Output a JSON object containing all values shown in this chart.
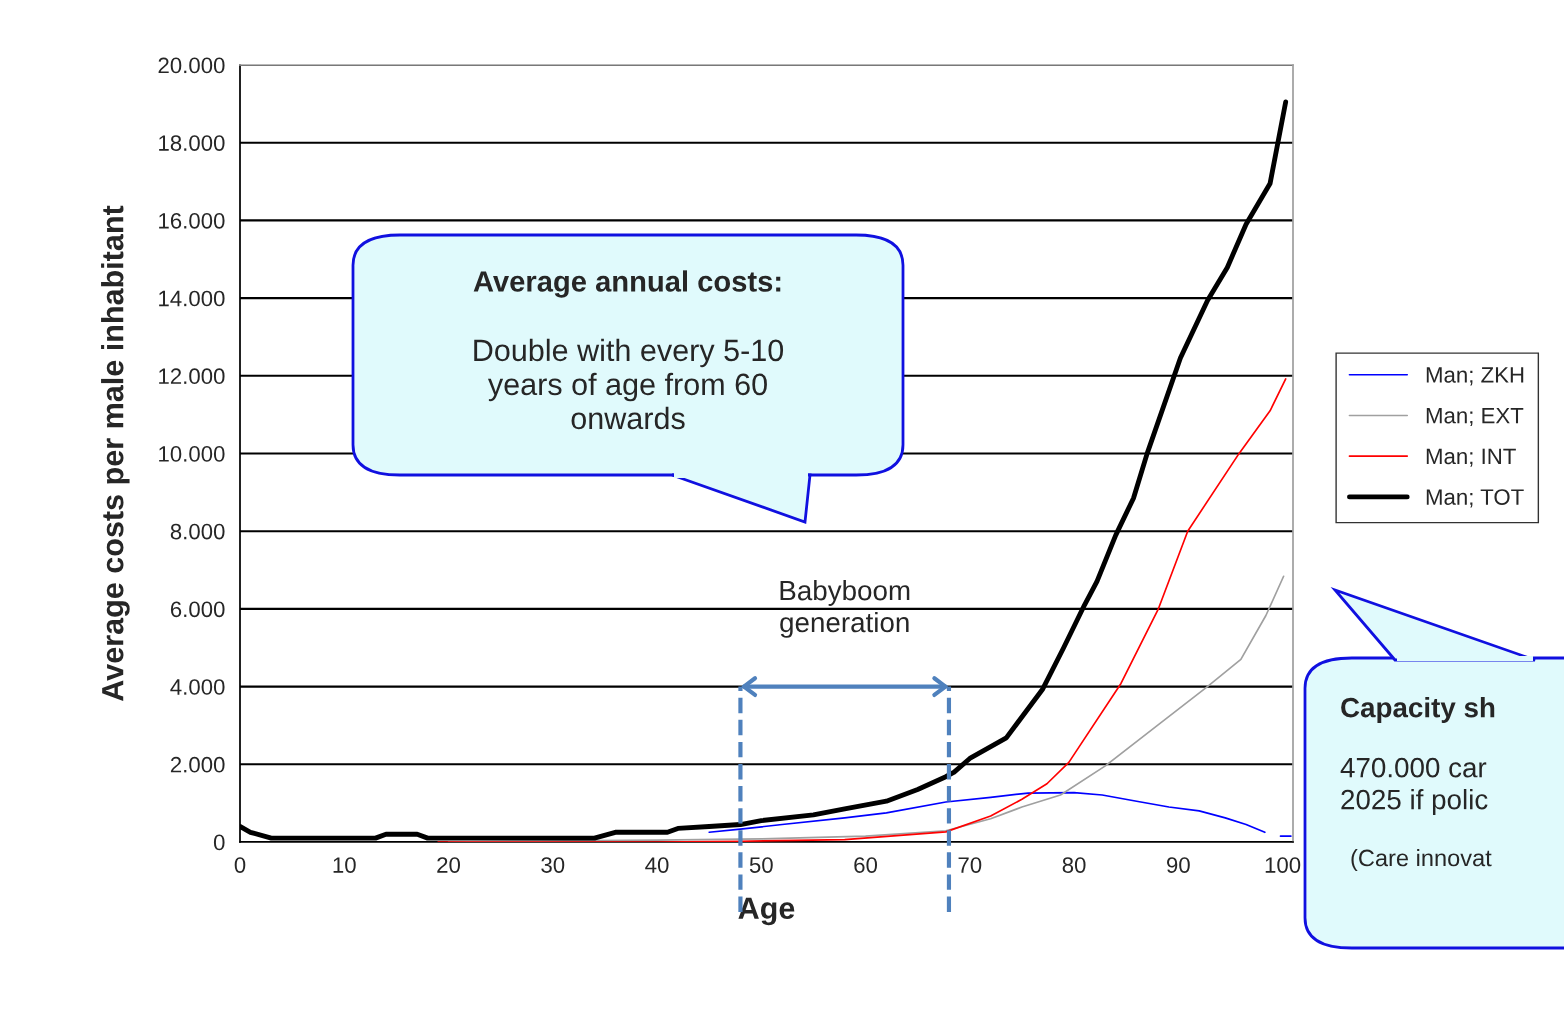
{
  "chart_data": {
    "type": "line",
    "xlabel": "Age",
    "ylabel": "Average costs per male inhabitant",
    "xlim": [
      0,
      101
    ],
    "xticks": [
      0,
      10,
      20,
      30,
      40,
      50,
      60,
      70,
      80,
      90,
      100
    ],
    "ylim": [
      0,
      20000
    ],
    "yticks": [
      0,
      {
        "value": 2000,
        "label": "2.000"
      },
      {
        "value": 4000,
        "label": "4.000"
      },
      {
        "value": 6000,
        "label": "6.000"
      },
      {
        "value": 8000,
        "label": "8.000"
      },
      {
        "value": 10000,
        "label": "10.000"
      },
      {
        "value": 12000,
        "label": "12.000"
      },
      {
        "value": 14000,
        "label": "14.000"
      },
      {
        "value": 16000,
        "label": "16.000"
      },
      {
        "value": 18000,
        "label": "18.000"
      },
      {
        "value": 20000,
        "label": "20.000"
      }
    ],
    "grid": "y",
    "legend": "right",
    "line_style": "solid",
    "series": [
      {
        "name": "Man; ZKH",
        "color": "#0000ff",
        "x": [
          45,
          48,
          52,
          58,
          62,
          67.7,
          72,
          75.6,
          80,
          82.7,
          86,
          89.1,
          92,
          94.5,
          96.5,
          98.3,
          99.1,
          99.8,
          100.8
        ],
        "values": [
          250,
          330,
          450,
          620,
          750,
          1030,
          1150,
          1260,
          1270,
          1210,
          1050,
          900,
          800,
          620,
          450,
          250,
          null,
          150,
          150
        ]
      },
      {
        "name": "Man; EXT",
        "color": "#a0a0a0",
        "x": [
          20,
          40,
          50,
          60,
          67.7,
          72,
          75,
          78.7,
          83,
          88,
          92.7,
          96,
          98.4,
          100.1
        ],
        "values": [
          0,
          50,
          80,
          150,
          290,
          600,
          900,
          1210,
          1960,
          3000,
          3980,
          4700,
          5830,
          6840
        ]
      },
      {
        "name": "Man; INT",
        "color": "#ff0000",
        "x": [
          19,
          40,
          48,
          58,
          67.7,
          72,
          75,
          77.4,
          79.5,
          84.5,
          88.1,
          90.9,
          95.8,
          98.8,
          100.3
        ],
        "values": [
          0,
          0,
          20,
          60,
          260,
          670,
          1100,
          1500,
          2050,
          4080,
          6010,
          8000,
          9990,
          11100,
          11920
        ]
      },
      {
        "name": "Man; TOT",
        "color": "#000000",
        "x": [
          0,
          1,
          3,
          13,
          14,
          17,
          18,
          20,
          34,
          36,
          41,
          42,
          45,
          48,
          50,
          55,
          58,
          62,
          65,
          67.7,
          68.5,
          70,
          73.5,
          77,
          79,
          81,
          82.2,
          84,
          85.7,
          87,
          90.2,
          92.8,
          94.7,
          96.5,
          98.8,
          100.3
        ],
        "values": [
          400,
          250,
          100,
          100,
          200,
          200,
          100,
          100,
          100,
          250,
          250,
          350,
          400,
          450,
          550,
          700,
          850,
          1050,
          1350,
          1680,
          1800,
          2150,
          2680,
          3940,
          5000,
          6100,
          6710,
          7900,
          8850,
          9990,
          12460,
          13940,
          14790,
          15900,
          16950,
          19050
        ]
      }
    ],
    "ref_lines": [
      {
        "axis": "x",
        "value": 48,
        "label": null,
        "color": "#4f81bd",
        "line_style": "dashed"
      },
      {
        "axis": "x",
        "value": 68,
        "label": null,
        "color": "#4f81bd",
        "line_style": "dashed"
      }
    ],
    "annotations": [
      "Average annual costs:",
      "Double with every 5-10\nyears of age from 60\nonwards",
      "Babyboom\ngeneration",
      "Capacity sh",
      "470.000 car\n2025 if polic",
      "(Care innovat"
    ]
  }
}
